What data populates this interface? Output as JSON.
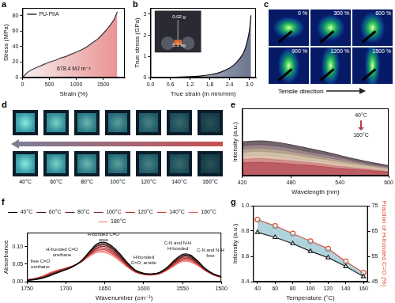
{
  "chart_data": [
    {
      "panel": "a",
      "type": "line",
      "xlabel": "Strain (%)",
      "ylabel": "Stress (MPa)",
      "x": [
        0,
        100,
        200,
        300,
        400,
        500,
        600,
        700,
        800,
        900,
        1000,
        1100,
        1200,
        1300,
        1400,
        1500,
        1600,
        1700,
        1760
      ],
      "series": [
        {
          "name": "PU-PIIA",
          "color": "#3a3a3a",
          "values": [
            0,
            7,
            11,
            14,
            17,
            20,
            22,
            25,
            27,
            30,
            33,
            36,
            40,
            45,
            50,
            57,
            65,
            75,
            85
          ]
        }
      ],
      "xlim": [
        0,
        1900
      ],
      "xticks": [
        0,
        500,
        1000,
        1500
      ],
      "ylim": [
        0,
        90
      ],
      "yticks": [
        0,
        20,
        40,
        60,
        80
      ],
      "legend": "upper left",
      "grid": false,
      "annotations": [
        "678.4 MJ m⁻³"
      ]
    },
    {
      "panel": "b",
      "type": "line",
      "xlabel": "True strain (ln mm/mm)",
      "ylabel": "True stress (GPa)",
      "x": [
        0,
        0.3,
        0.6,
        0.9,
        1.2,
        1.5,
        1.8,
        2.1,
        2.4,
        2.6,
        2.8,
        2.9,
        3.0,
        3.05
      ],
      "series": [
        {
          "color": "#111111",
          "values": [
            0,
            0.005,
            0.01,
            0.02,
            0.04,
            0.07,
            0.13,
            0.24,
            0.45,
            0.7,
            1.1,
            1.5,
            2.2,
            2.95
          ]
        }
      ],
      "xlim": [
        0,
        3.2
      ],
      "xticks": [
        {
          "value": 0,
          "label": "0.0"
        },
        0.6,
        1.2,
        1.8,
        2.4,
        {
          "value": 3,
          "label": "3.0"
        }
      ],
      "ylim": [
        0,
        3.3
      ],
      "yticks": [
        0,
        1,
        2,
        3
      ],
      "grid": false,
      "annotations": [
        "0.02 g",
        "5.3 kg"
      ]
    },
    {
      "panel": "e",
      "type": "line",
      "xlabel": "Wavelength (nm)",
      "ylabel": "Intensity (a.u.)",
      "x": [
        420,
        440,
        460,
        480,
        500,
        520,
        540,
        560,
        580,
        600
      ],
      "series": [
        {
          "color": "#5b4a55",
          "values": [
            0.6,
            0.62,
            0.6,
            0.55,
            0.49,
            0.43,
            0.36,
            0.29,
            0.23,
            0.18
          ]
        },
        {
          "color": "#8a7178",
          "values": [
            0.53,
            0.55,
            0.53,
            0.49,
            0.43,
            0.38,
            0.32,
            0.26,
            0.2,
            0.16
          ]
        },
        {
          "color": "#a8927e",
          "values": [
            0.47,
            0.49,
            0.47,
            0.43,
            0.38,
            0.33,
            0.28,
            0.23,
            0.18,
            0.14
          ]
        },
        {
          "color": "#c9b79b",
          "values": [
            0.41,
            0.43,
            0.41,
            0.38,
            0.33,
            0.29,
            0.24,
            0.2,
            0.16,
            0.12
          ]
        },
        {
          "color": "#d9b8a5",
          "values": [
            0.35,
            0.37,
            0.35,
            0.32,
            0.28,
            0.25,
            0.21,
            0.17,
            0.13,
            0.1
          ]
        },
        {
          "color": "#c97a78",
          "values": [
            0.29,
            0.31,
            0.29,
            0.27,
            0.24,
            0.21,
            0.17,
            0.14,
            0.11,
            0.08
          ]
        },
        {
          "color": "#b04048",
          "values": [
            0.23,
            0.24,
            0.23,
            0.21,
            0.19,
            0.16,
            0.13,
            0.11,
            0.09,
            0.07
          ]
        }
      ],
      "xlim": [
        420,
        600
      ],
      "xticks": [
        420,
        480,
        540,
        600
      ],
      "ylim": [
        0,
        1.2
      ],
      "tick_labels": "x",
      "grid": false,
      "annotations": [
        "40°C",
        "160°C"
      ]
    },
    {
      "panel": "f",
      "type": "line",
      "xlabel": "Wavenumber (cm⁻¹)",
      "ylabel": "Absorbance",
      "x": [
        1750,
        1740,
        1730,
        1720,
        1710,
        1700,
        1690,
        1680,
        1670,
        1660,
        1650,
        1640,
        1630,
        1620,
        1610,
        1600,
        1590,
        1580,
        1570,
        1560,
        1550,
        1540,
        1530,
        1520,
        1510,
        1500
      ],
      "series": [
        {
          "name": "40°C",
          "color": "#000000",
          "values": [
            0.004,
            0.006,
            0.01,
            0.017,
            0.026,
            0.034,
            0.044,
            0.06,
            0.085,
            0.108,
            0.112,
            0.1,
            0.078,
            0.052,
            0.032,
            0.024,
            0.022,
            0.026,
            0.04,
            0.062,
            0.078,
            0.076,
            0.058,
            0.036,
            0.022,
            0.014
          ]
        },
        {
          "name": "60°C",
          "color": "#3a1a1a",
          "values": [
            0.004,
            0.006,
            0.011,
            0.018,
            0.027,
            0.035,
            0.044,
            0.059,
            0.083,
            0.104,
            0.108,
            0.096,
            0.075,
            0.05,
            0.031,
            0.023,
            0.022,
            0.025,
            0.039,
            0.06,
            0.075,
            0.073,
            0.056,
            0.035,
            0.022,
            0.014
          ]
        },
        {
          "name": "80°C",
          "color": "#6b2020",
          "values": [
            0.004,
            0.007,
            0.012,
            0.02,
            0.028,
            0.035,
            0.045,
            0.059,
            0.081,
            0.101,
            0.104,
            0.093,
            0.072,
            0.049,
            0.03,
            0.023,
            0.021,
            0.025,
            0.038,
            0.057,
            0.072,
            0.07,
            0.054,
            0.034,
            0.021,
            0.013
          ]
        },
        {
          "name": "100°C",
          "color": "#8c2a2a",
          "values": [
            0.004,
            0.007,
            0.013,
            0.021,
            0.029,
            0.036,
            0.045,
            0.058,
            0.079,
            0.097,
            0.1,
            0.089,
            0.069,
            0.047,
            0.029,
            0.022,
            0.021,
            0.024,
            0.037,
            0.055,
            0.069,
            0.067,
            0.052,
            0.033,
            0.021,
            0.013
          ]
        },
        {
          "name": "120°C",
          "color": "#b03030",
          "values": [
            0.005,
            0.008,
            0.013,
            0.022,
            0.03,
            0.037,
            0.045,
            0.058,
            0.078,
            0.094,
            0.095,
            0.085,
            0.067,
            0.045,
            0.029,
            0.022,
            0.02,
            0.024,
            0.035,
            0.053,
            0.066,
            0.065,
            0.051,
            0.033,
            0.02,
            0.013
          ]
        },
        {
          "name": "140°C",
          "color": "#d04040",
          "values": [
            0.005,
            0.008,
            0.014,
            0.023,
            0.031,
            0.038,
            0.045,
            0.057,
            0.076,
            0.09,
            0.091,
            0.081,
            0.064,
            0.043,
            0.028,
            0.021,
            0.02,
            0.023,
            0.034,
            0.051,
            0.063,
            0.062,
            0.049,
            0.032,
            0.02,
            0.013
          ]
        },
        {
          "name": "160°C",
          "color": "#e86060",
          "values": [
            0.005,
            0.009,
            0.015,
            0.025,
            0.032,
            0.038,
            0.046,
            0.057,
            0.074,
            0.087,
            0.087,
            0.078,
            0.061,
            0.042,
            0.027,
            0.021,
            0.019,
            0.023,
            0.033,
            0.048,
            0.06,
            0.059,
            0.047,
            0.031,
            0.019,
            0.012
          ]
        },
        {
          "name": "180°C",
          "color": "#f08a80",
          "values": [
            0.005,
            0.009,
            0.016,
            0.026,
            0.033,
            0.039,
            0.046,
            0.056,
            0.072,
            0.083,
            0.083,
            0.074,
            0.058,
            0.04,
            0.026,
            0.02,
            0.019,
            0.022,
            0.032,
            0.046,
            0.057,
            0.056,
            0.045,
            0.03,
            0.019,
            0.012
          ]
        }
      ],
      "xlim": [
        1750,
        1500
      ],
      "xticks": [
        1750,
        1700,
        1650,
        1600,
        1550,
        1500
      ],
      "ylim": [
        0,
        0.14
      ],
      "yticks": [
        {
          "value": 0,
          "label": "0.00"
        },
        0.05,
        {
          "value": 0.1,
          "label": "0.10"
        }
      ],
      "legend": "top",
      "grid": false,
      "annotations": [
        "free C=O urethane",
        "H-bonded C=O urethane",
        "H-bonded C=O urea",
        "H-bonded C=O, amide",
        "C-N and N-H H-bonded",
        "C-N and N-H free"
      ]
    },
    {
      "panel": "g",
      "type": "line",
      "xlabel": "Temperature (°C)",
      "ylabel": "Intensity (a.u.)",
      "y2label": "Fraction of H-bonded C=O (%)",
      "x": [
        40,
        60,
        80,
        100,
        120,
        140,
        160
      ],
      "series": [
        {
          "color": "#222222",
          "marker": "triangle",
          "values": [
            0.79,
            0.75,
            0.7,
            0.64,
            0.59,
            0.52,
            0.44
          ]
        },
        {
          "color": "#e8472a",
          "marker": "circle",
          "axis": "y2",
          "values": [
            69.5,
            67,
            64,
            61,
            58,
            53,
            48.5
          ]
        }
      ],
      "xlim": [
        35,
        165
      ],
      "xticks": [
        40,
        60,
        80,
        100,
        120,
        140,
        160
      ],
      "ylim": [
        0.4,
        1.0
      ],
      "yticks": [
        0.4,
        0.6,
        0.8,
        {
          "value": 1,
          "label": "1.0"
        }
      ],
      "y2lim": [
        45,
        75
      ],
      "y2ticks": [
        45,
        55,
        65,
        75
      ],
      "grid": false
    }
  ],
  "pattern_panel": {
    "panel": "c",
    "labels": [
      "0 %",
      "300 %",
      "600 %",
      "900 %",
      "1200 %",
      "1500 %"
    ],
    "direction_label": "Tensile direction"
  },
  "photo_panel": {
    "panel": "d",
    "labels": [
      "40°C",
      "60°C",
      "80°C",
      "100°C",
      "120°C",
      "140°C",
      "160°C"
    ]
  }
}
